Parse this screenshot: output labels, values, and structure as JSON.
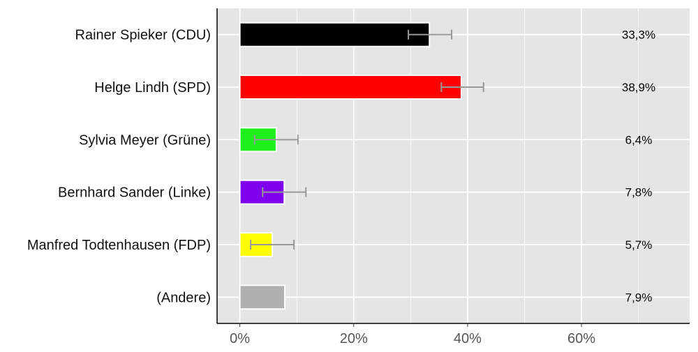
{
  "chart_data": {
    "type": "bar",
    "orientation": "horizontal",
    "categories": [
      "Rainer Spieker (CDU)",
      "Helge Lindh (SPD)",
      "Sylvia Meyer (Grüne)",
      "Bernhard Sander (Linke)",
      "Manfred Todtenhausen (FDP)",
      "(Andere)"
    ],
    "values": [
      33.3,
      38.9,
      6.4,
      7.8,
      5.7,
      7.9
    ],
    "value_labels": [
      "33,3%",
      "38,9%",
      "6,4%",
      "7,8%",
      "5,7%",
      "7,9%"
    ],
    "error_bars": [
      [
        29.6,
        37.2
      ],
      [
        35.4,
        42.8
      ],
      [
        2.6,
        10.2
      ],
      [
        4.0,
        11.6
      ],
      [
        1.9,
        9.5
      ],
      null
    ],
    "colors": [
      "#000000",
      "#ff0000",
      "#1ef01e",
      "#8000f0",
      "#ffff00",
      "#b0b0b0"
    ],
    "error_bar_color": "#999999",
    "panel_background": "#e5e5e5",
    "grid_color": "#ffffff",
    "grid": true,
    "xlim": [
      -4,
      79
    ],
    "x_ticks": [
      0,
      20,
      40,
      60
    ],
    "x_tick_labels": [
      "0%",
      "20%",
      "40%",
      "60%"
    ],
    "title": "",
    "xlabel": "",
    "ylabel": ""
  }
}
